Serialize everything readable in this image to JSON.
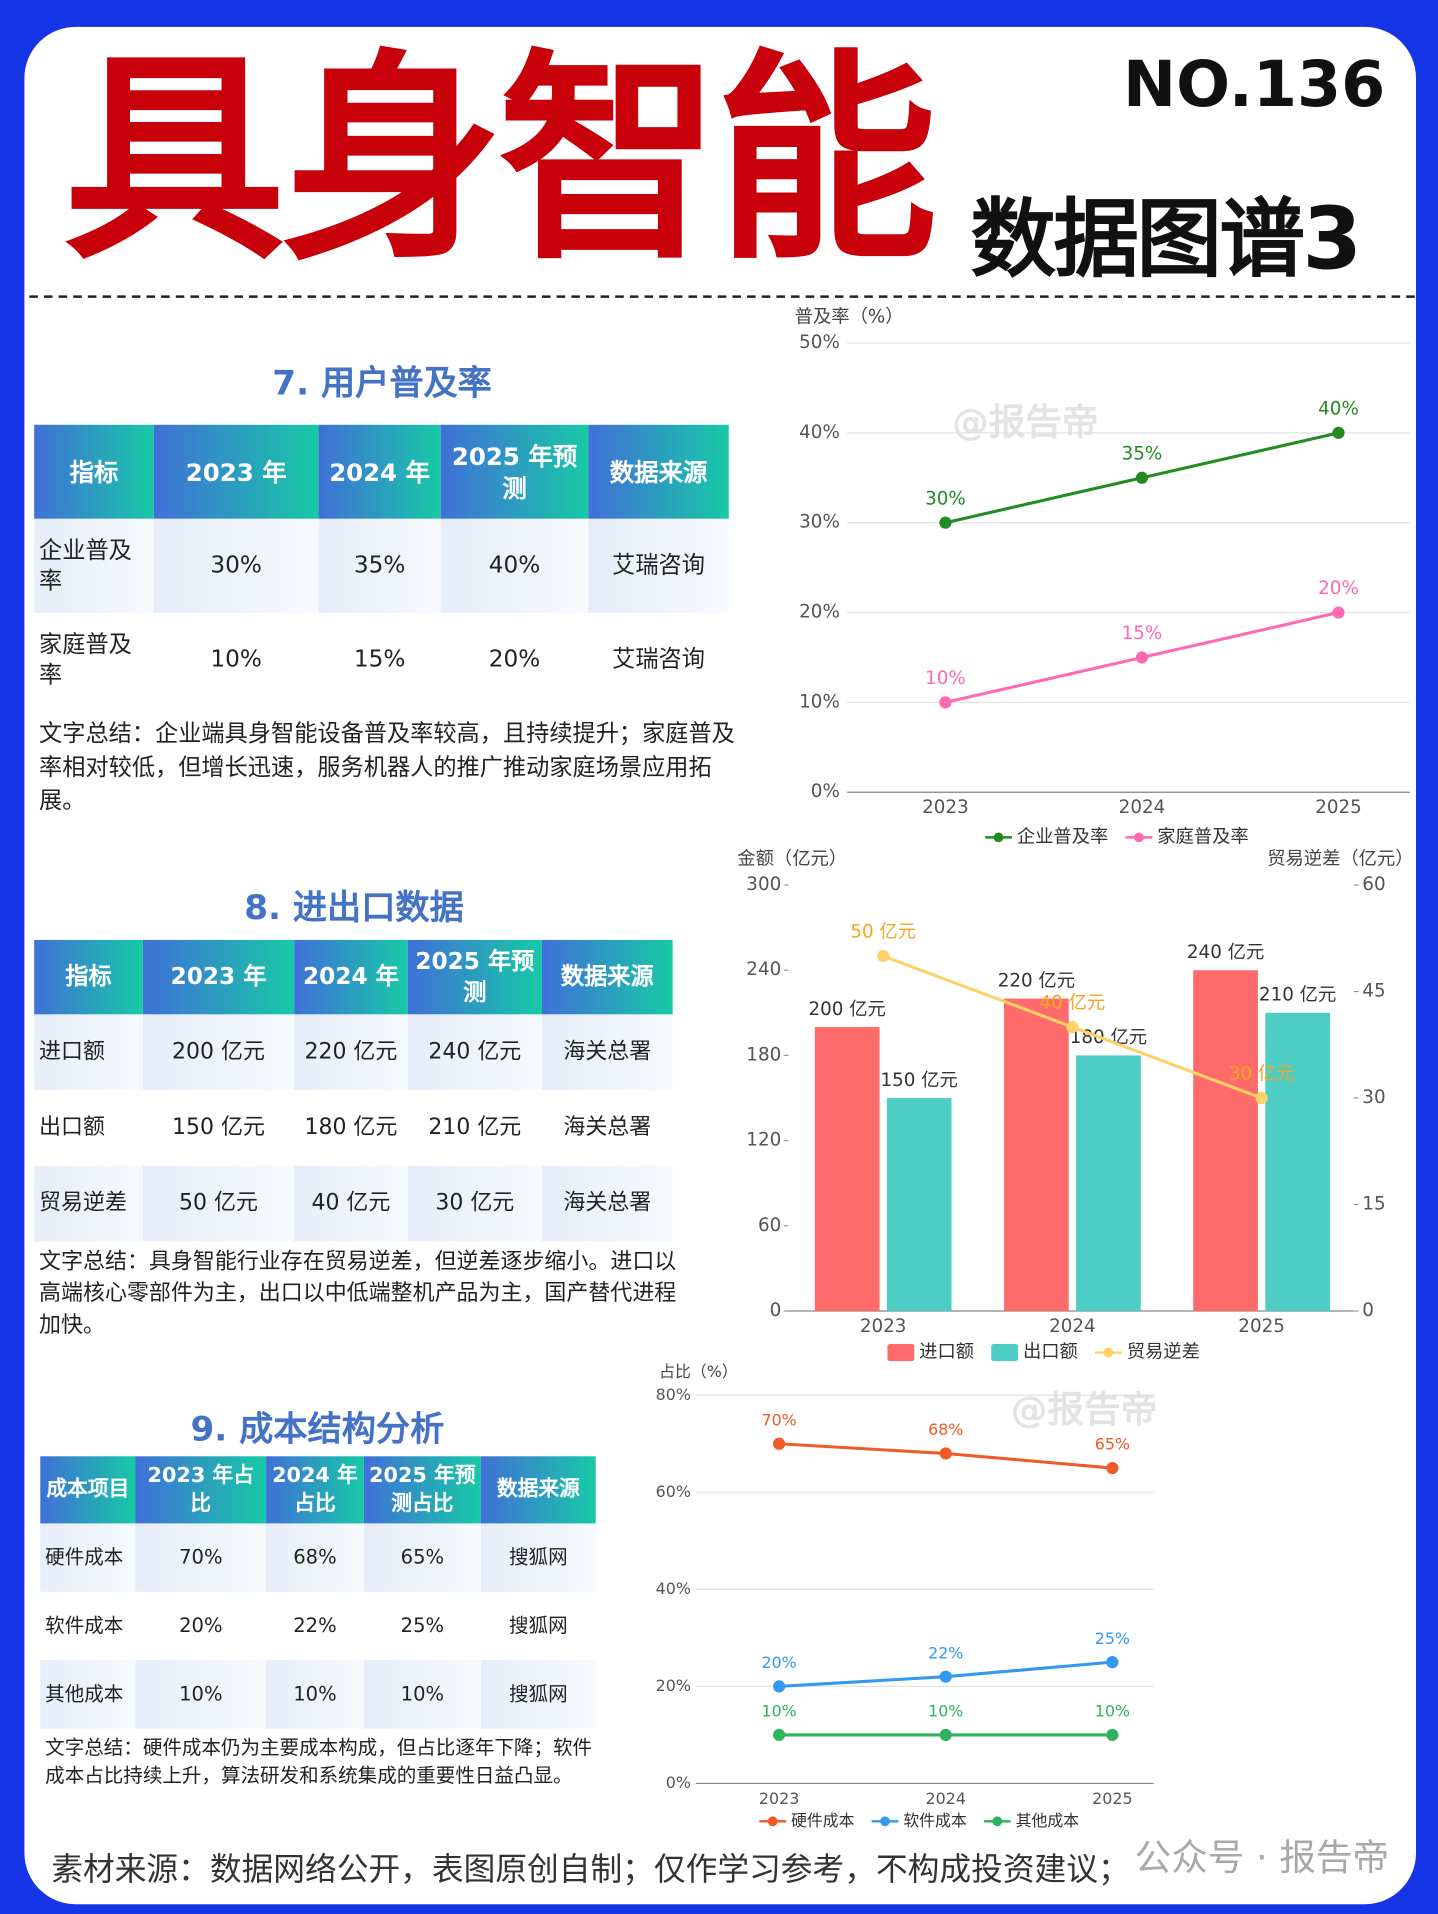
{
  "header": {
    "title": "具身智能",
    "number": "NO.136",
    "subtitle": "数据图谱3"
  },
  "sections": [
    {
      "title": "7. 用户普及率",
      "table": {
        "columns": [
          "指标",
          "2023 年",
          "2024 年",
          "2025 年预测",
          "数据来源"
        ],
        "rows": [
          [
            "企业普及率",
            "30%",
            "35%",
            "40%",
            "艾瑞咨询"
          ],
          [
            "家庭普及率",
            "10%",
            "15%",
            "20%",
            "艾瑞咨询"
          ]
        ]
      },
      "summary": "文字总结：企业端具身智能设备普及率较高，且持续提升；家庭普及率相对较低，但增长迅速，服务机器人的推广推动家庭场景应用拓展。"
    },
    {
      "title": "8. 进出口数据",
      "table": {
        "columns": [
          "指标",
          "2023 年",
          "2024 年",
          "2025 年预测",
          "数据来源"
        ],
        "rows": [
          [
            "进口额",
            "200 亿元",
            "220 亿元",
            "240 亿元",
            "海关总署"
          ],
          [
            "出口额",
            "150 亿元",
            "180 亿元",
            "210 亿元",
            "海关总署"
          ],
          [
            "贸易逆差",
            "50 亿元",
            "40 亿元",
            "30 亿元",
            "海关总署"
          ]
        ]
      },
      "summary": "文字总结：具身智能行业存在贸易逆差，但逆差逐步缩小。进口以高端核心零部件为主，出口以中低端整机产品为主，国产替代进程加快。"
    },
    {
      "title": "9. 成本结构分析",
      "table": {
        "columns": [
          "成本项目",
          "2023 年占比",
          "2024 年占比",
          "2025 年预测占比",
          "数据来源"
        ],
        "rows": [
          [
            "硬件成本",
            "70%",
            "68%",
            "65%",
            "搜狐网"
          ],
          [
            "软件成本",
            "20%",
            "22%",
            "25%",
            "搜狐网"
          ],
          [
            "其他成本",
            "10%",
            "10%",
            "10%",
            "搜狐网"
          ]
        ]
      },
      "summary": "文字总结：硬件成本仍为主要成本构成，但占比逐年下降；软件成本占比持续上升，算法研发和系统集成的重要性日益凸显。"
    }
  ],
  "chart_data": [
    {
      "type": "line",
      "y_label": "普及率（%）",
      "categories": [
        "2023",
        "2024",
        "2025"
      ],
      "series": [
        {
          "name": "企业普及率",
          "color": "#228b22",
          "values": [
            30,
            35,
            40
          ],
          "value_labels": [
            "30%",
            "35%",
            "40%"
          ]
        },
        {
          "name": "家庭普及率",
          "color": "#ff69b4",
          "values": [
            10,
            15,
            20
          ],
          "value_labels": [
            "10%",
            "15%",
            "20%"
          ]
        }
      ],
      "ylim": [
        0,
        50
      ],
      "yticks": [
        {
          "value": 0,
          "label": "0%"
        },
        {
          "value": 10,
          "label": "10%"
        },
        {
          "value": 20,
          "label": "20%"
        },
        {
          "value": 30,
          "label": "30%"
        },
        {
          "value": 40,
          "label": "40%"
        },
        {
          "value": 50,
          "label": "50%"
        }
      ],
      "grid": true,
      "legend": "bottom"
    },
    {
      "type": "bar",
      "y_label": "金额（亿元）",
      "y2_label": "贸易逆差（亿元）",
      "categories": [
        "2023",
        "2024",
        "2025"
      ],
      "series": [
        {
          "name": "进口额",
          "color": "#ff6b6b",
          "values": [
            200,
            220,
            240
          ],
          "value_labels": [
            "200 亿元",
            "220 亿元",
            "240 亿元"
          ]
        },
        {
          "name": "出口额",
          "color": "#4ecdc4",
          "values": [
            150,
            180,
            210
          ],
          "value_labels": [
            "150 亿元",
            "180 亿元",
            "210 亿元"
          ]
        },
        {
          "name": "贸易逆差",
          "type": "line",
          "axis": "y2",
          "color": "#ffd166",
          "values": [
            50,
            40,
            30
          ],
          "value_labels": [
            "50 亿元",
            "40 亿元",
            "30 亿元"
          ]
        }
      ],
      "ylim": [
        0,
        300
      ],
      "yticks": [
        0,
        60,
        120,
        180,
        240,
        300
      ],
      "y2lim": [
        0,
        60
      ],
      "y2ticks": [
        0,
        15,
        30,
        45,
        60
      ],
      "grid": false,
      "legend": "bottom"
    },
    {
      "type": "line",
      "y_label": "占比（%）",
      "categories": [
        "2023",
        "2024",
        "2025"
      ],
      "series": [
        {
          "name": "硬件成本",
          "color": "#f05a28",
          "values": [
            70,
            68,
            65
          ],
          "value_labels": [
            "70%",
            "68%",
            "65%"
          ]
        },
        {
          "name": "软件成本",
          "color": "#3399ee",
          "values": [
            20,
            22,
            25
          ],
          "value_labels": [
            "20%",
            "22%",
            "25%"
          ]
        },
        {
          "name": "其他成本",
          "color": "#2db35d",
          "values": [
            10,
            10,
            10
          ],
          "value_labels": [
            "10%",
            "10%",
            "10%"
          ]
        }
      ],
      "ylim": [
        0,
        80
      ],
      "yticks": [
        {
          "value": 0,
          "label": "0%"
        },
        {
          "value": 20,
          "label": "20%"
        },
        {
          "value": 40,
          "label": "40%"
        },
        {
          "value": 60,
          "label": "60%"
        },
        {
          "value": 80,
          "label": "80%"
        }
      ],
      "grid": true,
      "legend": "bottom"
    }
  ],
  "watermark": "@报告帝",
  "footer": {
    "source": "素材来源：数据网络公开，表图原创自制；仅作学习参考，不构成投资建议；",
    "account": "公众号 · 报告帝"
  }
}
